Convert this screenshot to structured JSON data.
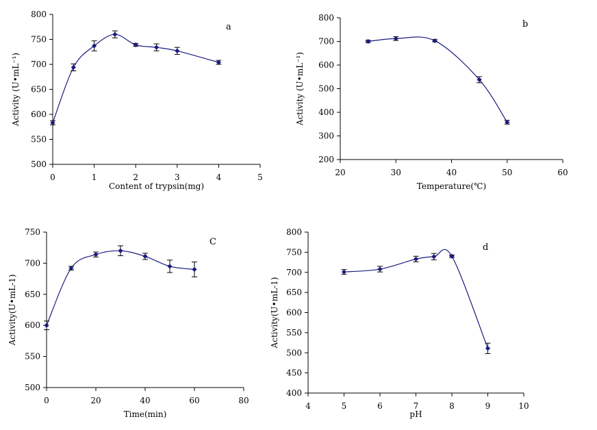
{
  "chart_data": [
    {
      "type": "line",
      "panel": "a",
      "xlabel": "Content of trypsin(mg)",
      "ylabel": "Activity (U•mL⁻¹)",
      "xlim": [
        0,
        5
      ],
      "ylim": [
        500,
        800
      ],
      "xticks": [
        "0",
        "1",
        "2",
        "3",
        "4",
        "5"
      ],
      "yticks": [
        "500",
        "550",
        "600",
        "650",
        "700",
        "750",
        "800"
      ],
      "grid": false,
      "series": [
        {
          "x": [
            0,
            0.5,
            1,
            1.5,
            2,
            2.5,
            3,
            4
          ],
          "values": [
            583,
            694,
            737,
            760,
            739,
            734,
            727,
            704
          ],
          "errors": [
            4,
            7,
            10,
            7,
            3,
            7,
            7,
            4
          ]
        }
      ]
    },
    {
      "type": "line",
      "panel": "b",
      "xlabel": "Temperature(℃)",
      "ylabel": "Activity (U•mL⁻¹)",
      "xlim": [
        20,
        60
      ],
      "ylim": [
        200,
        800
      ],
      "xticks": [
        "20",
        "30",
        "40",
        "50",
        "60"
      ],
      "yticks": [
        "200",
        "300",
        "400",
        "500",
        "600",
        "700",
        "800"
      ],
      "grid": false,
      "series": [
        {
          "x": [
            25,
            30,
            37,
            45,
            50
          ],
          "values": [
            700,
            712,
            703,
            538,
            358
          ],
          "errors": [
            5,
            8,
            5,
            13,
            8
          ]
        }
      ]
    },
    {
      "type": "line",
      "panel": "C",
      "xlabel": "Time(min)",
      "ylabel": "Activity(U•mL-1)",
      "xlim": [
        0,
        80
      ],
      "ylim": [
        500,
        750
      ],
      "xticks": [
        "0",
        "20",
        "40",
        "60",
        "80"
      ],
      "yticks": [
        "500",
        "550",
        "600",
        "650",
        "700",
        "750"
      ],
      "grid": false,
      "series": [
        {
          "x": [
            0,
            10,
            20,
            30,
            40,
            50,
            60
          ],
          "values": [
            600,
            692,
            714,
            720,
            711,
            695,
            690
          ],
          "errors": [
            7,
            3,
            4,
            8,
            5,
            10,
            12
          ]
        }
      ]
    },
    {
      "type": "line",
      "panel": "d",
      "xlabel": "pH",
      "ylabel": "Activity(U•mL-1)",
      "xlim": [
        4,
        10
      ],
      "ylim": [
        400,
        800
      ],
      "xticks": [
        "4",
        "5",
        "6",
        "7",
        "8",
        "9",
        "10"
      ],
      "yticks": [
        "400",
        "450",
        "500",
        "550",
        "600",
        "650",
        "700",
        "750",
        "800"
      ],
      "grid": false,
      "series": [
        {
          "x": [
            5,
            6,
            7,
            7.5,
            8,
            9
          ],
          "values": [
            701,
            708,
            733,
            739,
            740,
            511
          ],
          "errors": [
            6,
            7,
            7,
            8,
            3,
            13
          ]
        }
      ]
    }
  ],
  "colors": {
    "series": "#1a1a80",
    "axis": "#000000"
  }
}
